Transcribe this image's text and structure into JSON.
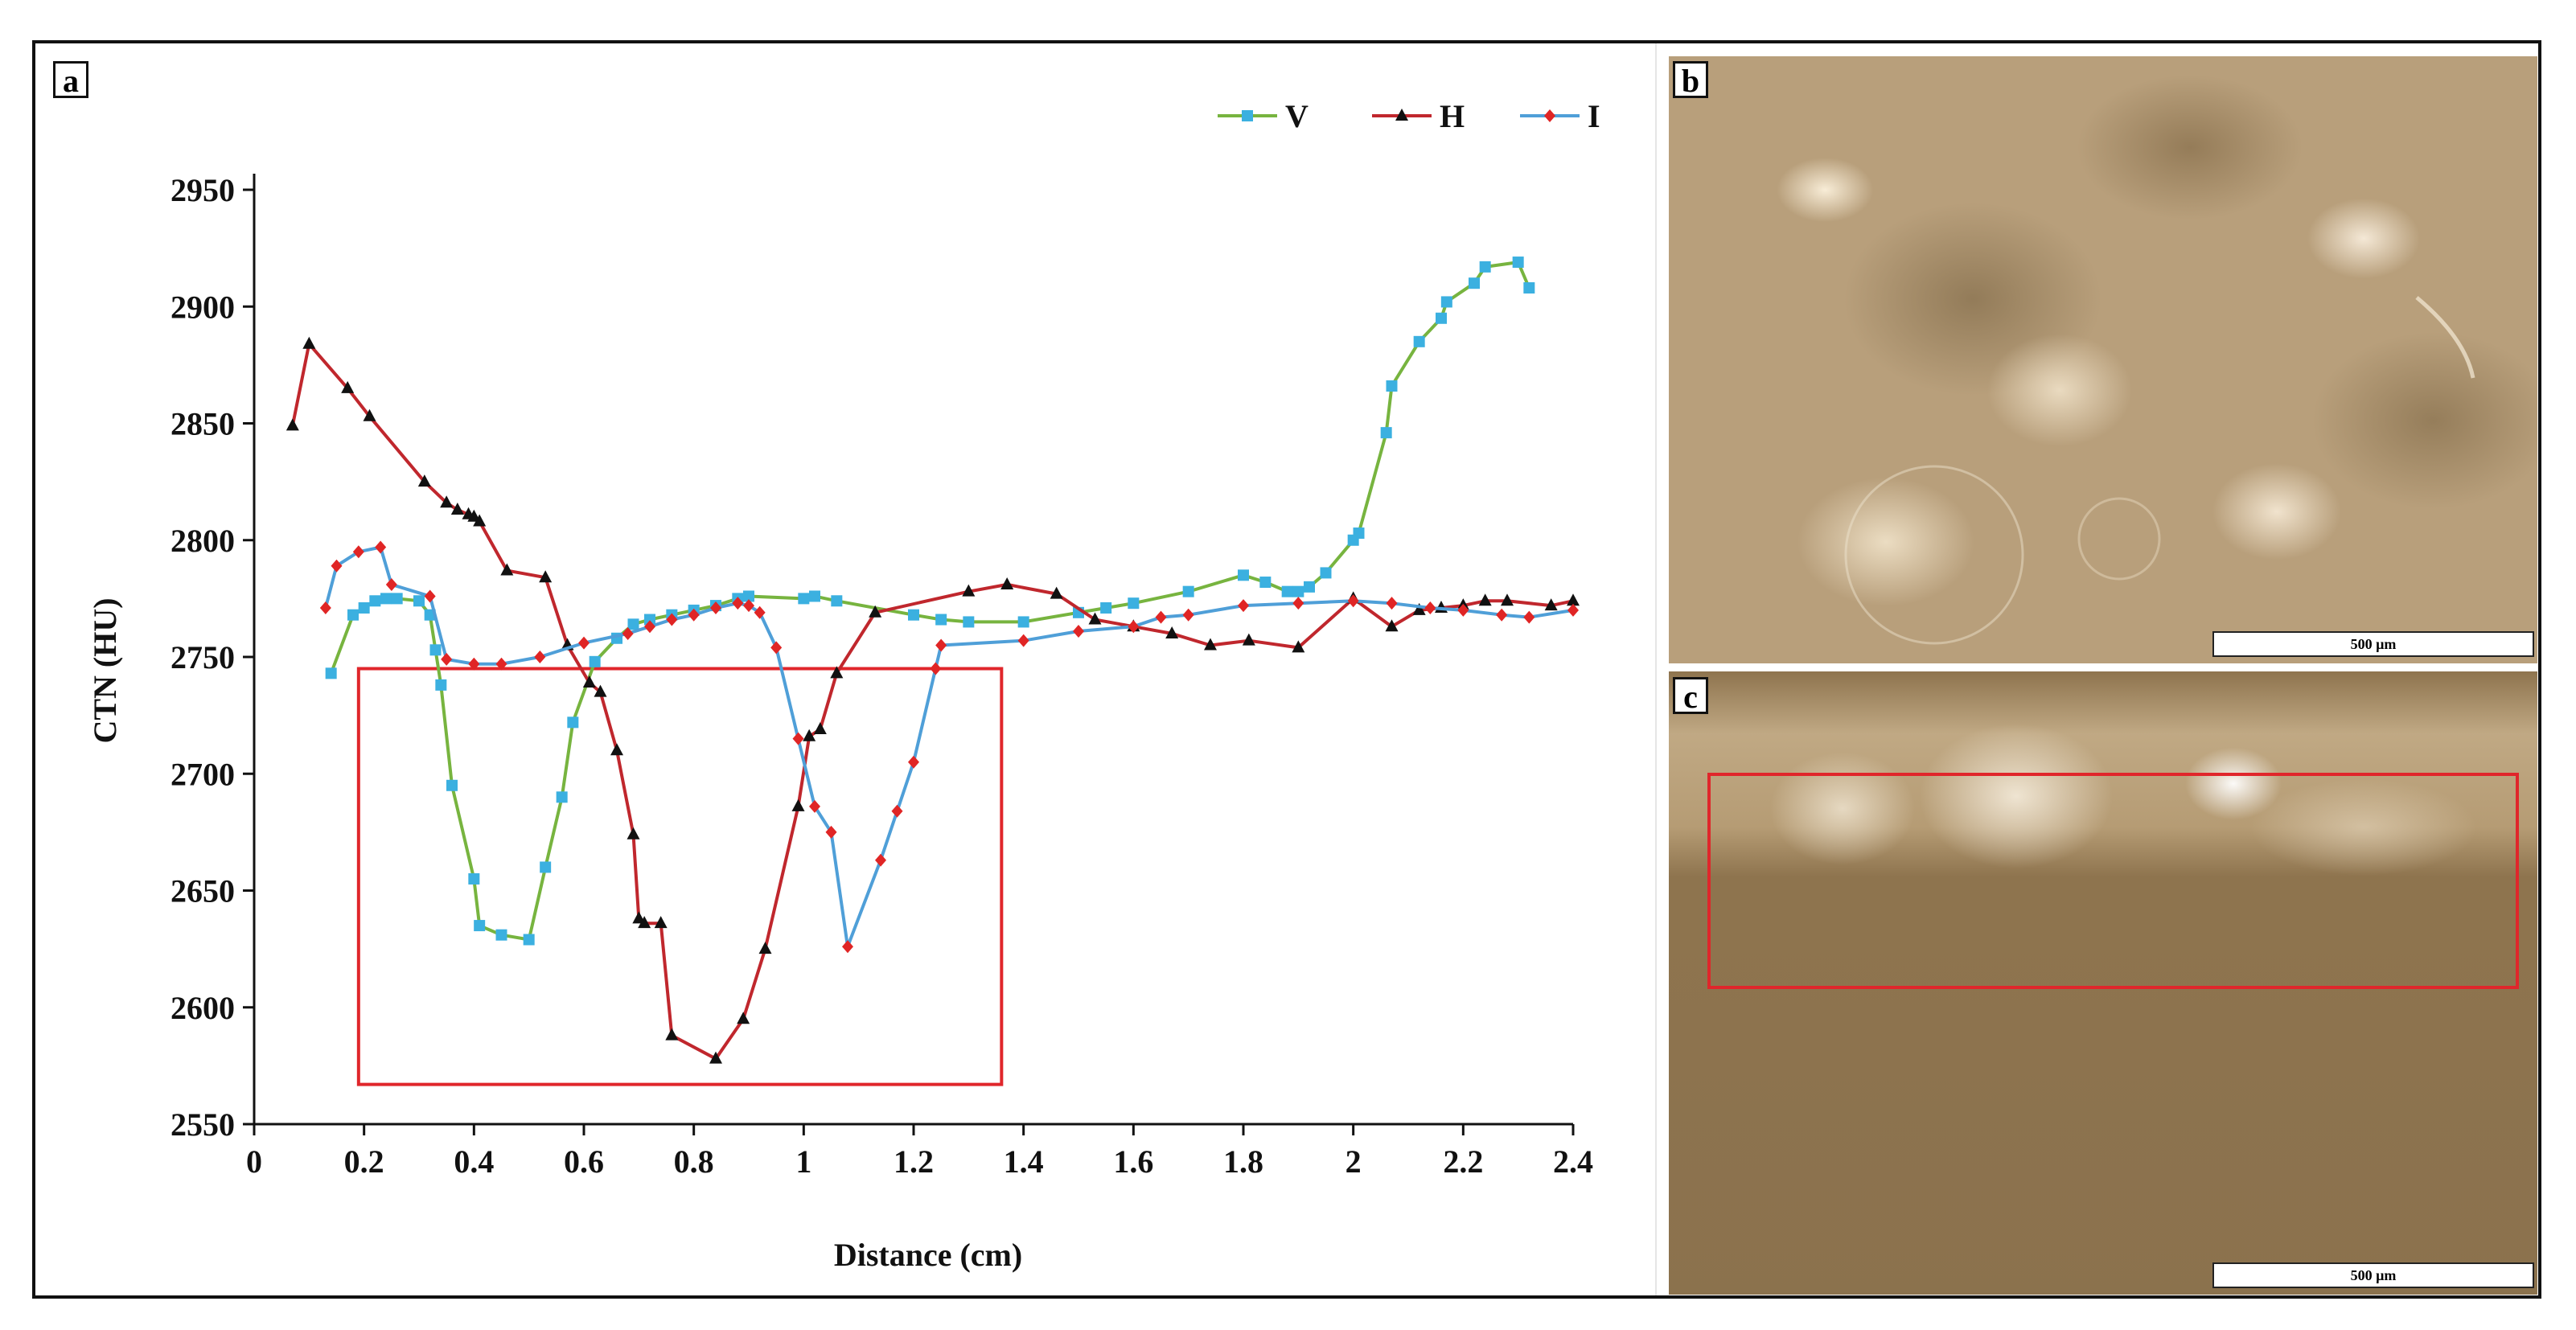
{
  "panels": {
    "a_label": "a",
    "b_label": "b",
    "c_label": "c"
  },
  "micrographs": {
    "b_scale": "500  µm",
    "c_scale": "500  µm"
  },
  "colors": {
    "V": "#77b43f",
    "H": "#c0272d",
    "I": "#4f9fd8",
    "V_marker": "#3bb0e0",
    "H_marker": "#111111",
    "I_marker": "#e02525",
    "highlight": "#e0262b"
  },
  "chart_data": {
    "type": "line",
    "title": "",
    "xlabel": "Distance (cm)",
    "ylabel": "CTN (HU)",
    "xlim": [
      0,
      2.4
    ],
    "ylim": [
      2550,
      2950
    ],
    "xticks": [
      0,
      0.2,
      0.4,
      0.6,
      0.8,
      1,
      1.2,
      1.4,
      1.6,
      1.8,
      2,
      2.2,
      2.4
    ],
    "xtick_labels": [
      "0",
      "0.2",
      "0.4",
      "0.6",
      "0.8",
      "1",
      "1.2",
      "1.4",
      "1.6",
      "1.8",
      "2",
      "2.2",
      "2.4"
    ],
    "yticks": [
      2550,
      2600,
      2650,
      2700,
      2750,
      2800,
      2850,
      2900,
      2950
    ],
    "ytick_labels": [
      "2550",
      "2600",
      "2650",
      "2700",
      "2750",
      "2800",
      "2850",
      "2900",
      "2950"
    ],
    "legend_position": "top-right",
    "highlight_box": {
      "x": [
        0.19,
        1.36
      ],
      "y": [
        2567,
        2745
      ]
    },
    "series": [
      {
        "name": "V",
        "marker": "square",
        "x": [
          0.14,
          0.18,
          0.2,
          0.22,
          0.24,
          0.26,
          0.3,
          0.32,
          0.33,
          0.34,
          0.36,
          0.4,
          0.41,
          0.45,
          0.5,
          0.53,
          0.56,
          0.58,
          0.62,
          0.66,
          0.69,
          0.72,
          0.76,
          0.8,
          0.84,
          0.88,
          0.9,
          1.0,
          1.02,
          1.06,
          1.2,
          1.25,
          1.3,
          1.4,
          1.5,
          1.55,
          1.6,
          1.7,
          1.8,
          1.84,
          1.88,
          1.9,
          1.92,
          1.95,
          2.0,
          2.01,
          2.06,
          2.07,
          2.12,
          2.16,
          2.17,
          2.22,
          2.24,
          2.3,
          2.32
        ],
        "y": [
          2743,
          2768,
          2771,
          2774,
          2775,
          2775,
          2774,
          2768,
          2753,
          2738,
          2695,
          2655,
          2635,
          2631,
          2629,
          2660,
          2690,
          2722,
          2748,
          2758,
          2764,
          2766,
          2768,
          2770,
          2772,
          2775,
          2776,
          2775,
          2776,
          2774,
          2768,
          2766,
          2765,
          2765,
          2769,
          2771,
          2773,
          2778,
          2785,
          2782,
          2778,
          2778,
          2780,
          2786,
          2800,
          2803,
          2846,
          2866,
          2885,
          2895,
          2902,
          2910,
          2917,
          2919,
          2908
        ]
      },
      {
        "name": "H",
        "marker": "triangle",
        "x": [
          0.07,
          0.1,
          0.17,
          0.21,
          0.31,
          0.35,
          0.37,
          0.39,
          0.4,
          0.41,
          0.46,
          0.53,
          0.57,
          0.61,
          0.63,
          0.66,
          0.69,
          0.7,
          0.71,
          0.74,
          0.76,
          0.84,
          0.89,
          0.93,
          0.99,
          1.01,
          1.03,
          1.06,
          1.13,
          1.3,
          1.37,
          1.46,
          1.53,
          1.6,
          1.67,
          1.74,
          1.81,
          1.9,
          2.0,
          2.07,
          2.12,
          2.16,
          2.2,
          2.24,
          2.28,
          2.36,
          2.4
        ],
        "y": [
          2849,
          2884,
          2865,
          2853,
          2825,
          2816,
          2813,
          2811,
          2810,
          2808,
          2787,
          2784,
          2755,
          2739,
          2735,
          2710,
          2674,
          2638,
          2636,
          2636,
          2588,
          2578,
          2595,
          2625,
          2686,
          2716,
          2719,
          2743,
          2769,
          2778,
          2781,
          2777,
          2766,
          2763,
          2760,
          2755,
          2757,
          2754,
          2775,
          2763,
          2770,
          2771,
          2772,
          2774,
          2774,
          2772,
          2774
        ]
      },
      {
        "name": "I",
        "marker": "diamond",
        "x": [
          0.13,
          0.15,
          0.19,
          0.23,
          0.25,
          0.32,
          0.35,
          0.4,
          0.45,
          0.52,
          0.6,
          0.68,
          0.72,
          0.76,
          0.8,
          0.84,
          0.88,
          0.9,
          0.92,
          0.95,
          0.99,
          1.02,
          1.05,
          1.08,
          1.14,
          1.17,
          1.2,
          1.24,
          1.25,
          1.4,
          1.5,
          1.6,
          1.65,
          1.7,
          1.8,
          1.9,
          2.0,
          2.07,
          2.14,
          2.2,
          2.27,
          2.32,
          2.4
        ],
        "y": [
          2771,
          2789,
          2795,
          2797,
          2781,
          2776,
          2749,
          2747,
          2747,
          2750,
          2756,
          2760,
          2763,
          2766,
          2768,
          2771,
          2773,
          2772,
          2769,
          2754,
          2715,
          2686,
          2675,
          2626,
          2663,
          2684,
          2705,
          2745,
          2755,
          2757,
          2761,
          2763,
          2767,
          2768,
          2772,
          2773,
          2774,
          2773,
          2771,
          2770,
          2768,
          2767,
          2770
        ]
      }
    ]
  }
}
